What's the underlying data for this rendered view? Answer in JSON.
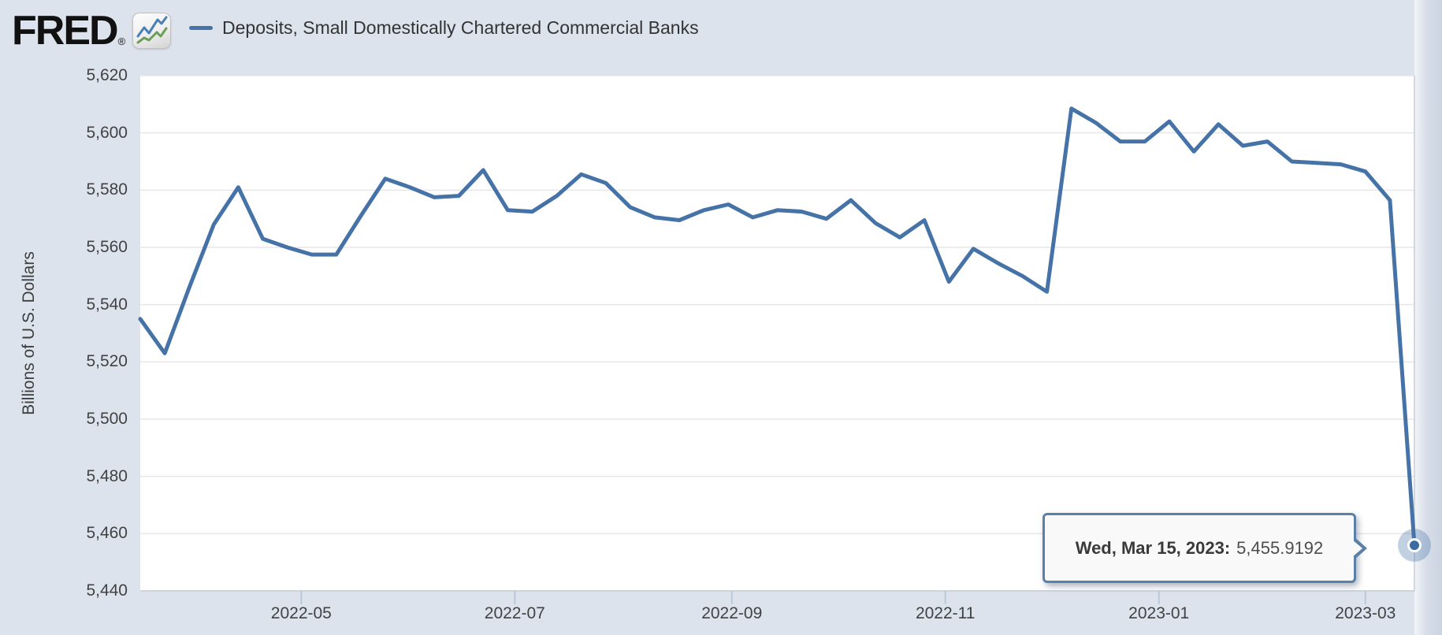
{
  "header": {
    "logo_text": "FRED",
    "registered_mark": "®",
    "logo_icon": "fred-sparkline-icon",
    "legend": {
      "series_label": "Deposits, Small Domestically Chartered Commercial Banks",
      "swatch_color": "#4572a7"
    }
  },
  "y_axis": {
    "title": "Billions of U.S. Dollars",
    "tick_values": [
      5440,
      5460,
      5480,
      5500,
      5520,
      5540,
      5560,
      5580,
      5600,
      5620
    ],
    "tick_labels": [
      "5,440",
      "5,460",
      "5,480",
      "5,500",
      "5,520",
      "5,540",
      "5,560",
      "5,580",
      "5,600",
      "5,620"
    ]
  },
  "x_axis": {
    "ticks": [
      {
        "date": "2022-05-01",
        "label": "2022-05"
      },
      {
        "date": "2022-07-01",
        "label": "2022-07"
      },
      {
        "date": "2022-09-01",
        "label": "2022-09"
      },
      {
        "date": "2022-11-01",
        "label": "2022-11"
      },
      {
        "date": "2023-01-01",
        "label": "2023-01"
      },
      {
        "date": "2023-03-01",
        "label": "2023-03"
      }
    ]
  },
  "tooltip": {
    "date_label": "Wed, Mar 15, 2023:",
    "value": "5,455.9192"
  },
  "colors": {
    "line": "#4572a7",
    "halo": "rgba(69,114,167,0.33)",
    "marker": "#3c6ba3",
    "marker_ring": "#ffffff",
    "tooltip_border": "#5b80a8",
    "grid": "#e6e6e6",
    "axis_border": "#c6ccd5",
    "tick": "#b9c8db",
    "page_bg": "#dce3ed",
    "plot_bg": "#ffffff",
    "label_text": "#424242"
  },
  "chart_data": {
    "type": "line",
    "title": "Deposits, Small Domestically Chartered Commercial Banks",
    "xlabel": "",
    "ylabel": "Billions of U.S. Dollars",
    "ylim": [
      5440,
      5620
    ],
    "x_range": [
      "2022-03-16",
      "2023-03-15"
    ],
    "frequency": "weekly (Wednesdays)",
    "grid": "horizontal-only",
    "legend_position": "top-left",
    "series": [
      {
        "name": "Deposits, Small Domestically Chartered Commercial Banks",
        "x": [
          "2022-03-16",
          "2022-03-23",
          "2022-03-30",
          "2022-04-06",
          "2022-04-13",
          "2022-04-20",
          "2022-04-27",
          "2022-05-04",
          "2022-05-11",
          "2022-05-18",
          "2022-05-25",
          "2022-06-01",
          "2022-06-08",
          "2022-06-15",
          "2022-06-22",
          "2022-06-29",
          "2022-07-06",
          "2022-07-13",
          "2022-07-20",
          "2022-07-27",
          "2022-08-03",
          "2022-08-10",
          "2022-08-17",
          "2022-08-24",
          "2022-08-31",
          "2022-09-07",
          "2022-09-14",
          "2022-09-21",
          "2022-09-28",
          "2022-10-05",
          "2022-10-12",
          "2022-10-19",
          "2022-10-26",
          "2022-11-02",
          "2022-11-09",
          "2022-11-16",
          "2022-11-23",
          "2022-11-30",
          "2022-12-07",
          "2022-12-14",
          "2022-12-21",
          "2022-12-28",
          "2023-01-04",
          "2023-01-11",
          "2023-01-18",
          "2023-01-25",
          "2023-02-01",
          "2023-02-08",
          "2023-02-15",
          "2023-02-22",
          "2023-03-01",
          "2023-03-08",
          "2023-03-15"
        ],
        "values": [
          5535,
          5523,
          5546,
          5568,
          5581,
          5563,
          5560,
          5557.5,
          5557.5,
          5571,
          5584,
          5581,
          5577.5,
          5578,
          5587,
          5573,
          5572.5,
          5578,
          5585.5,
          5582.5,
          5574,
          5570.5,
          5569.5,
          5573,
          5575,
          5570.5,
          5573,
          5572.5,
          5570,
          5576.5,
          5568.5,
          5563.5,
          5569.5,
          5548,
          5559.5,
          5554.5,
          5550,
          5544.5,
          5608.5,
          5603.5,
          5597,
          5597,
          5604,
          5593.5,
          5603,
          5595.5,
          5597,
          5590,
          5589.5,
          5589,
          5586.5,
          5576.5,
          5455.9192
        ]
      }
    ],
    "last_point": {
      "date": "2023-03-15",
      "value": 5455.9192,
      "marker": true
    }
  }
}
